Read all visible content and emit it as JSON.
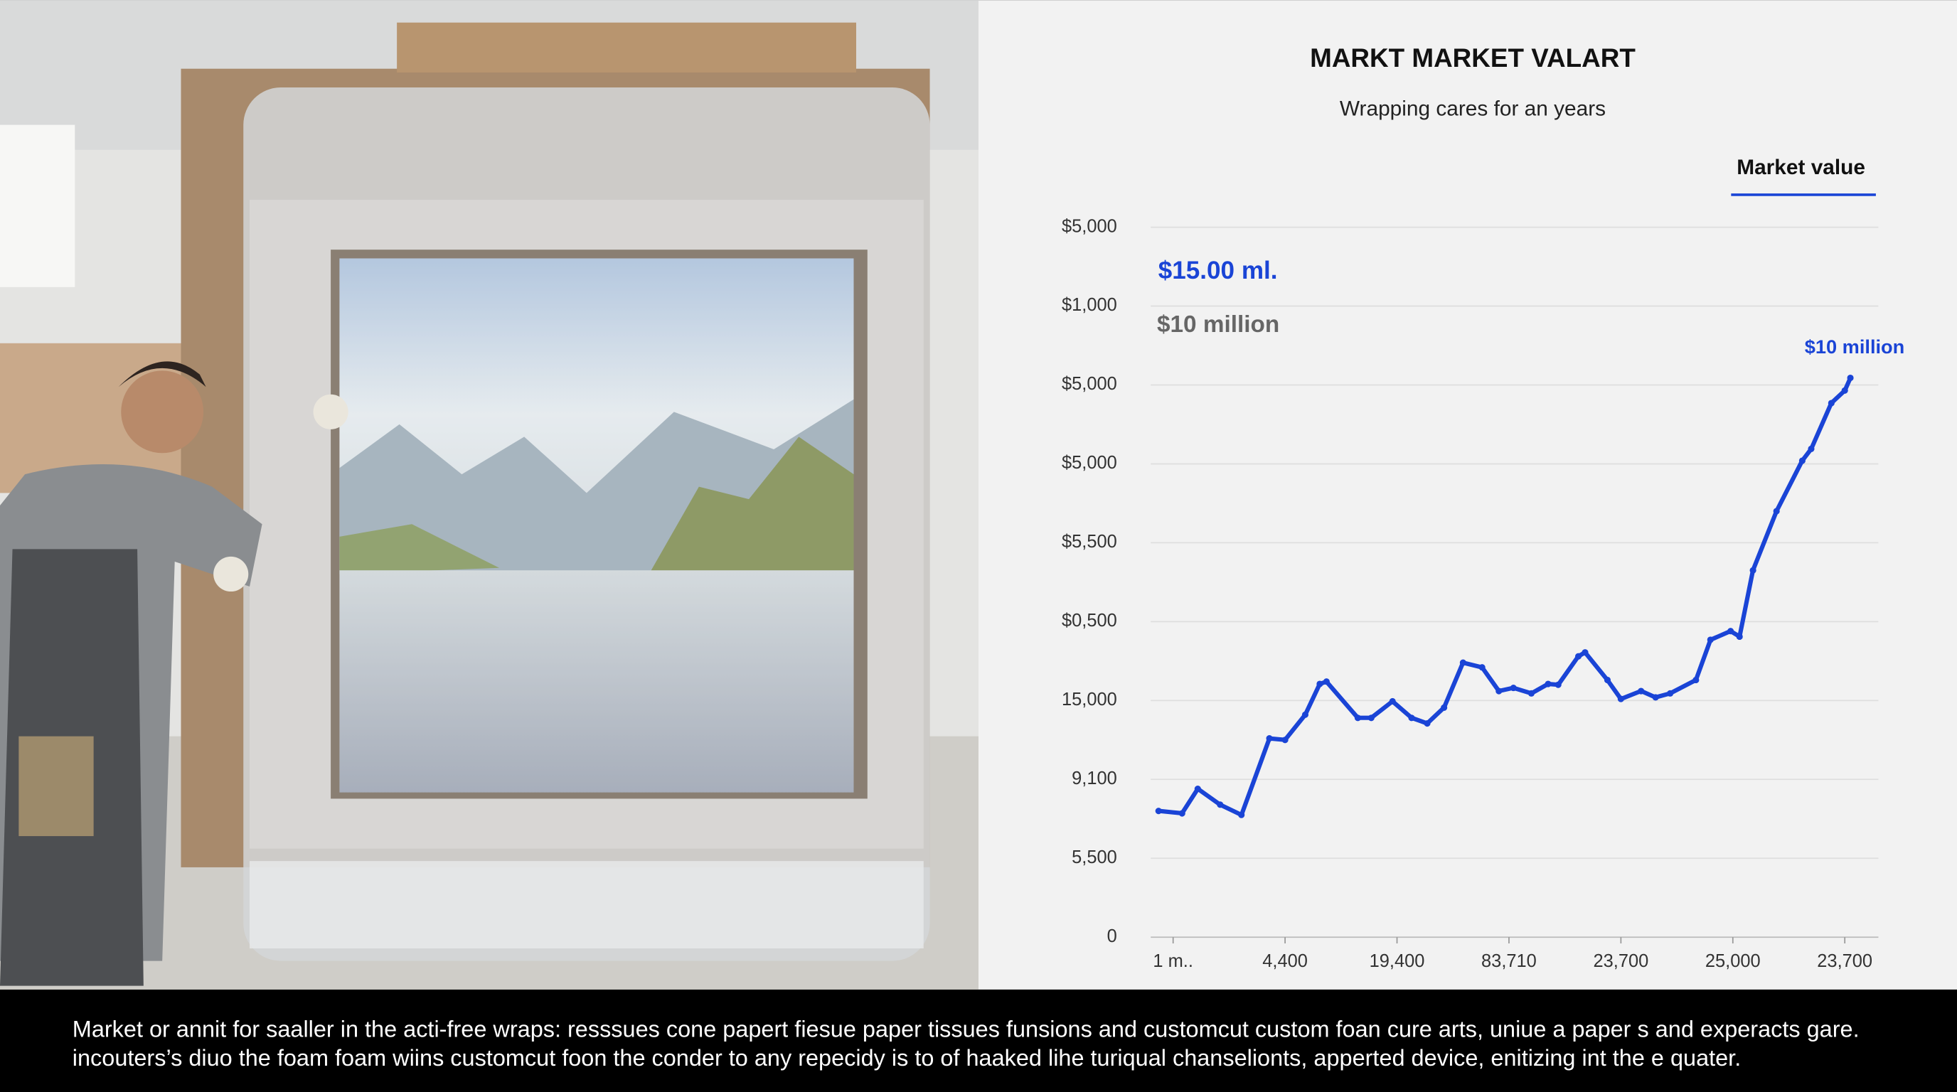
{
  "chart_data": {
    "type": "line",
    "title": "MARKT MARKET VALART",
    "subtitle": "Wrapping cares for an years",
    "legend": "top-right",
    "grid": true,
    "annotations": [
      "$15.00 ml.",
      "$10 million",
      "$10 million"
    ],
    "x": [
      -0.13,
      0.08,
      0.22,
      0.42,
      0.61,
      0.86,
      1.0,
      1.18,
      1.31,
      1.37,
      1.65,
      1.77,
      1.96,
      2.13,
      2.27,
      2.42,
      2.59,
      2.76,
      2.91,
      3.04,
      3.2,
      3.35,
      3.44,
      3.62,
      3.68,
      3.88,
      4.0,
      4.18,
      4.31,
      4.44,
      4.67,
      4.8,
      4.98,
      5.06,
      5.18,
      5.39,
      5.62,
      5.7,
      5.88,
      6.0,
      6.05
    ],
    "series": [
      {
        "name": "Market value",
        "color": "#1a44d6",
        "values": [
          1.6,
          1.57,
          1.88,
          1.68,
          1.55,
          2.52,
          2.5,
          2.82,
          3.21,
          3.24,
          2.78,
          2.78,
          2.99,
          2.78,
          2.71,
          2.91,
          3.48,
          3.42,
          3.12,
          3.16,
          3.09,
          3.21,
          3.2,
          3.56,
          3.61,
          3.26,
          3.02,
          3.12,
          3.04,
          3.09,
          3.26,
          3.77,
          3.88,
          3.81,
          4.65,
          5.4,
          6.04,
          6.19,
          6.77,
          6.93,
          7.09
        ]
      }
    ],
    "xlim": [
      -0.2,
      6.3
    ],
    "ylim": [
      0,
      9
    ],
    "xticks": [
      {
        "value": 0,
        "label": "1 m.."
      },
      {
        "value": 1,
        "label": "4,400"
      },
      {
        "value": 2,
        "label": "19,400"
      },
      {
        "value": 3,
        "label": "83,710"
      },
      {
        "value": 4,
        "label": "23,700"
      },
      {
        "value": 5,
        "label": "25,000"
      },
      {
        "value": 6,
        "label": "23,700"
      }
    ],
    "yticks": [
      0,
      {
        "value": 1,
        "label": "5,500"
      },
      {
        "value": 2,
        "label": "9,100"
      },
      {
        "value": 3,
        "label": "15,000"
      },
      {
        "value": 4,
        "label": "$0,500"
      },
      {
        "value": 5,
        "label": "$5,500"
      },
      {
        "value": 6,
        "label": "$5,000"
      },
      {
        "value": 7,
        "label": "$5,000"
      },
      {
        "value": 8,
        "label": "$1,000"
      },
      {
        "value": 9,
        "label": "$5,000"
      }
    ]
  },
  "caption": {
    "lines": [
      "Market or annit for saaller in the acti-free wraps: resssues cone papert fiesue paper tissues funsions and customcut custom foan cure arts, uniue a paper s and experacts gare.",
      "incouters’s diuo the foam foam wiins customcut foon the conder to any repecidy is to of haaked lihe turiqual chanselionts, apperted device, enitizing int the e quater."
    ]
  }
}
